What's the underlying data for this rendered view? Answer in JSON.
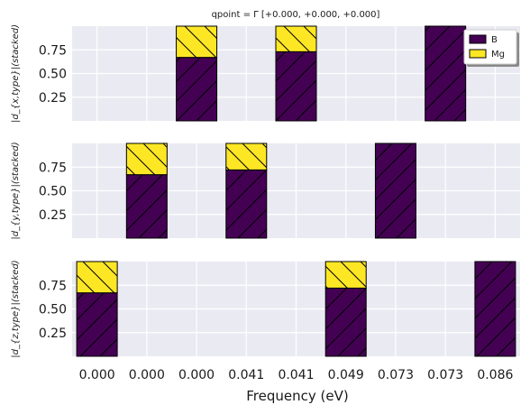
{
  "chart_data": {
    "type": "bar",
    "stacked": true,
    "title": "qpoint = Γ [+0.000, +0.000, +0.000]",
    "xlabel": "Frequency (eV)",
    "categories": [
      "0.000",
      "0.000",
      "0.000",
      "0.041",
      "0.041",
      "0.049",
      "0.073",
      "0.073",
      "0.086"
    ],
    "ylim": [
      0,
      1
    ],
    "yticks": [
      "0.25",
      "0.50",
      "0.75"
    ],
    "grid": true,
    "legend": {
      "placement": "top-right",
      "entries": [
        {
          "name": "B",
          "color": "#440154"
        },
        {
          "name": "Mg",
          "color": "#fde725"
        }
      ]
    },
    "panels": [
      {
        "ylabel": "|d_{x,type}|(stacked)",
        "series": [
          {
            "name": "B",
            "values": [
              0,
              0,
              0.67,
              0,
              0.73,
              0,
              0,
              1.0,
              0
            ]
          },
          {
            "name": "Mg",
            "values": [
              0,
              0,
              0.33,
              0,
              0.27,
              0,
              0,
              0,
              0
            ]
          }
        ]
      },
      {
        "ylabel": "|d_{y,type}|(stacked)",
        "series": [
          {
            "name": "B",
            "values": [
              0,
              0.67,
              0,
              0.72,
              0,
              0,
              1.0,
              0,
              0
            ]
          },
          {
            "name": "Mg",
            "values": [
              0,
              0.33,
              0,
              0.28,
              0,
              0,
              0,
              0,
              0
            ]
          }
        ]
      },
      {
        "ylabel": "|d_{z,type}|(stacked)",
        "series": [
          {
            "name": "B",
            "values": [
              0.67,
              0,
              0,
              0,
              0,
              0.72,
              0,
              0,
              1.0
            ]
          },
          {
            "name": "Mg",
            "values": [
              0.33,
              0,
              0,
              0,
              0,
              0.28,
              0,
              0,
              0
            ]
          }
        ]
      }
    ]
  }
}
